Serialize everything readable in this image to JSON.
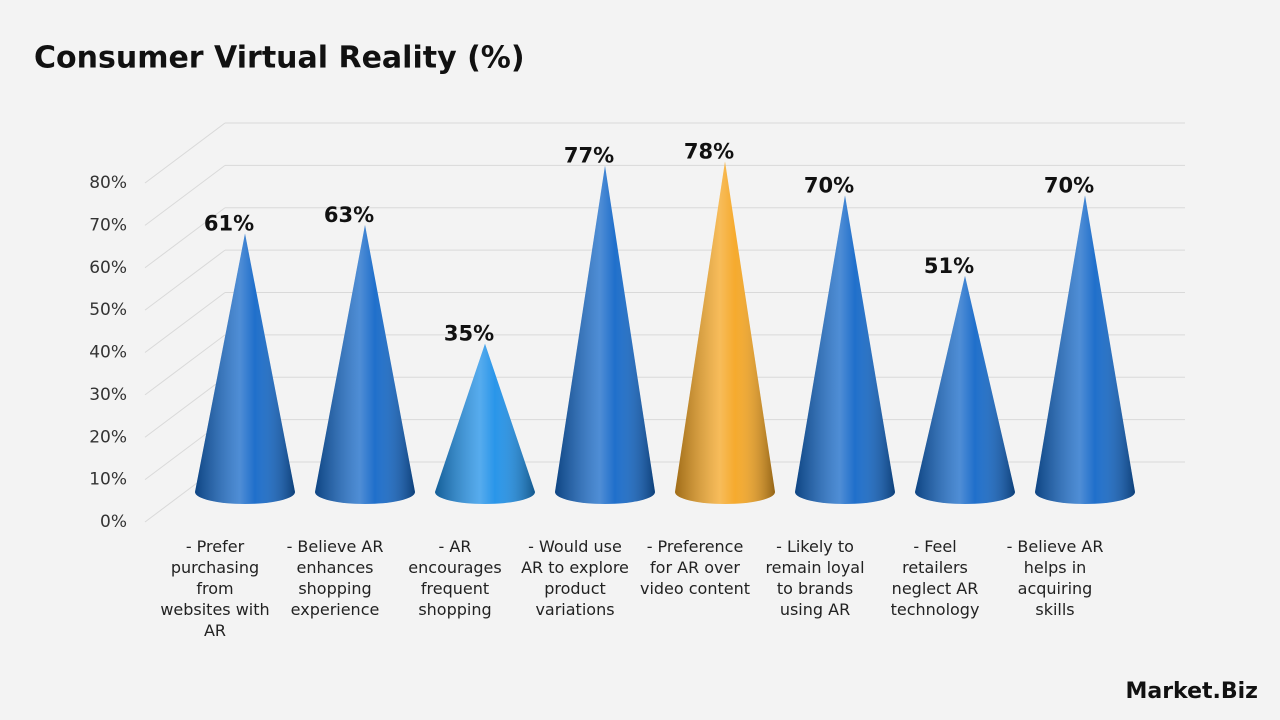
{
  "chart_data": {
    "type": "cone",
    "title": "Consumer Virtual Reality (%)",
    "categories": [
      "- Prefer purchasing from websites with AR",
      "- Believe AR enhances shopping experience",
      "- AR encourages frequent shopping",
      "- Would use AR to explore product variations",
      "- Preference for AR over video content",
      "- Likely to remain loyal to brands using AR",
      "- Feel retailers neglect AR technology",
      "- Believe AR helps in acquiring skills"
    ],
    "values": [
      61,
      63,
      35,
      77,
      78,
      70,
      51,
      70
    ],
    "value_labels": [
      "61%",
      "63%",
      "35%",
      "77%",
      "78%",
      "70%",
      "51%",
      "70%"
    ],
    "colors": [
      "#1468c8",
      "#1468c8",
      "#1e90e8",
      "#1468c8",
      "#f5a623",
      "#1468c8",
      "#1468c8",
      "#1468c8"
    ],
    "ylim": [
      0,
      80
    ],
    "yticks": [
      {
        "value": 0,
        "label": "0%"
      },
      {
        "value": 10,
        "label": "10%"
      },
      {
        "value": 20,
        "label": "20%"
      },
      {
        "value": 30,
        "label": "30%"
      },
      {
        "value": 40,
        "label": "40%"
      },
      {
        "value": 50,
        "label": "50%"
      },
      {
        "value": 60,
        "label": "60%"
      },
      {
        "value": 70,
        "label": "70%"
      },
      {
        "value": 80,
        "label": "80%"
      }
    ],
    "grid": true
  },
  "logo": "Market.Biz"
}
